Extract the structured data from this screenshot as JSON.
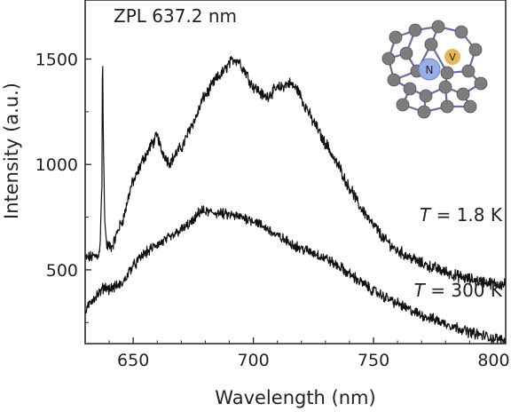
{
  "chart_data": {
    "type": "line",
    "title": "",
    "xlabel": "Wavelength (nm)",
    "ylabel": "Intensity (a.u.)",
    "xlim": [
      630,
      805
    ],
    "ylim": [
      150,
      1780
    ],
    "xticks": [
      650,
      700,
      750,
      800
    ],
    "yticks": [
      500,
      1000,
      1500
    ],
    "xtick_labels": [
      "650",
      "700",
      "750",
      "800"
    ],
    "ytick_labels": [
      "500",
      "1000",
      "1500"
    ],
    "grid": false,
    "legend": "none",
    "annotation": "ZPL 637.2 nm",
    "series": [
      {
        "label_var": "T",
        "label_rest": " = 1.8 K",
        "noise": 22,
        "x": [
          630,
          634,
          636,
          637,
          637.2,
          637.6,
          638.2,
          639,
          641,
          645,
          650,
          655,
          658,
          660,
          662,
          665,
          670,
          675,
          680,
          685,
          688,
          690,
          692,
          694,
          696,
          700,
          705,
          710,
          715,
          718,
          722,
          725,
          730,
          735,
          740,
          745,
          750,
          755,
          760,
          765,
          770,
          775,
          780,
          785,
          790,
          795,
          800,
          805
        ],
        "y": [
          555,
          565,
          575,
          900,
          1580,
          1080,
          720,
          615,
          610,
          720,
          920,
          1040,
          1100,
          1135,
          1060,
          1010,
          1080,
          1200,
          1330,
          1410,
          1445,
          1480,
          1500,
          1490,
          1450,
          1370,
          1320,
          1360,
          1385,
          1360,
          1270,
          1200,
          1100,
          1000,
          890,
          790,
          710,
          640,
          590,
          560,
          530,
          510,
          490,
          470,
          455,
          445,
          435,
          430
        ]
      },
      {
        "label_var": "T",
        "label_rest": " = 300 K",
        "noise": 20,
        "x": [
          630,
          633,
          636,
          638,
          640,
          645,
          650,
          655,
          660,
          665,
          670,
          675,
          678,
          680,
          685,
          690,
          695,
          700,
          705,
          710,
          715,
          720,
          725,
          730,
          735,
          740,
          745,
          750,
          755,
          760,
          765,
          770,
          775,
          780,
          785,
          790,
          795,
          800,
          805
        ],
        "y": [
          300,
          360,
          390,
          420,
          410,
          430,
          520,
          580,
          620,
          650,
          690,
          730,
          780,
          775,
          770,
          760,
          750,
          735,
          700,
          660,
          630,
          600,
          580,
          555,
          520,
          480,
          440,
          400,
          370,
          340,
          310,
          285,
          265,
          245,
          225,
          205,
          190,
          175,
          165
        ]
      }
    ]
  },
  "inset": {
    "atom_labels": [
      "N",
      "V"
    ],
    "colors": {
      "nitrogen": "#9aaee8",
      "vacancy": "#e0a93a",
      "carbon": "#7d7d7d",
      "bond": "#2e3f8c"
    }
  }
}
